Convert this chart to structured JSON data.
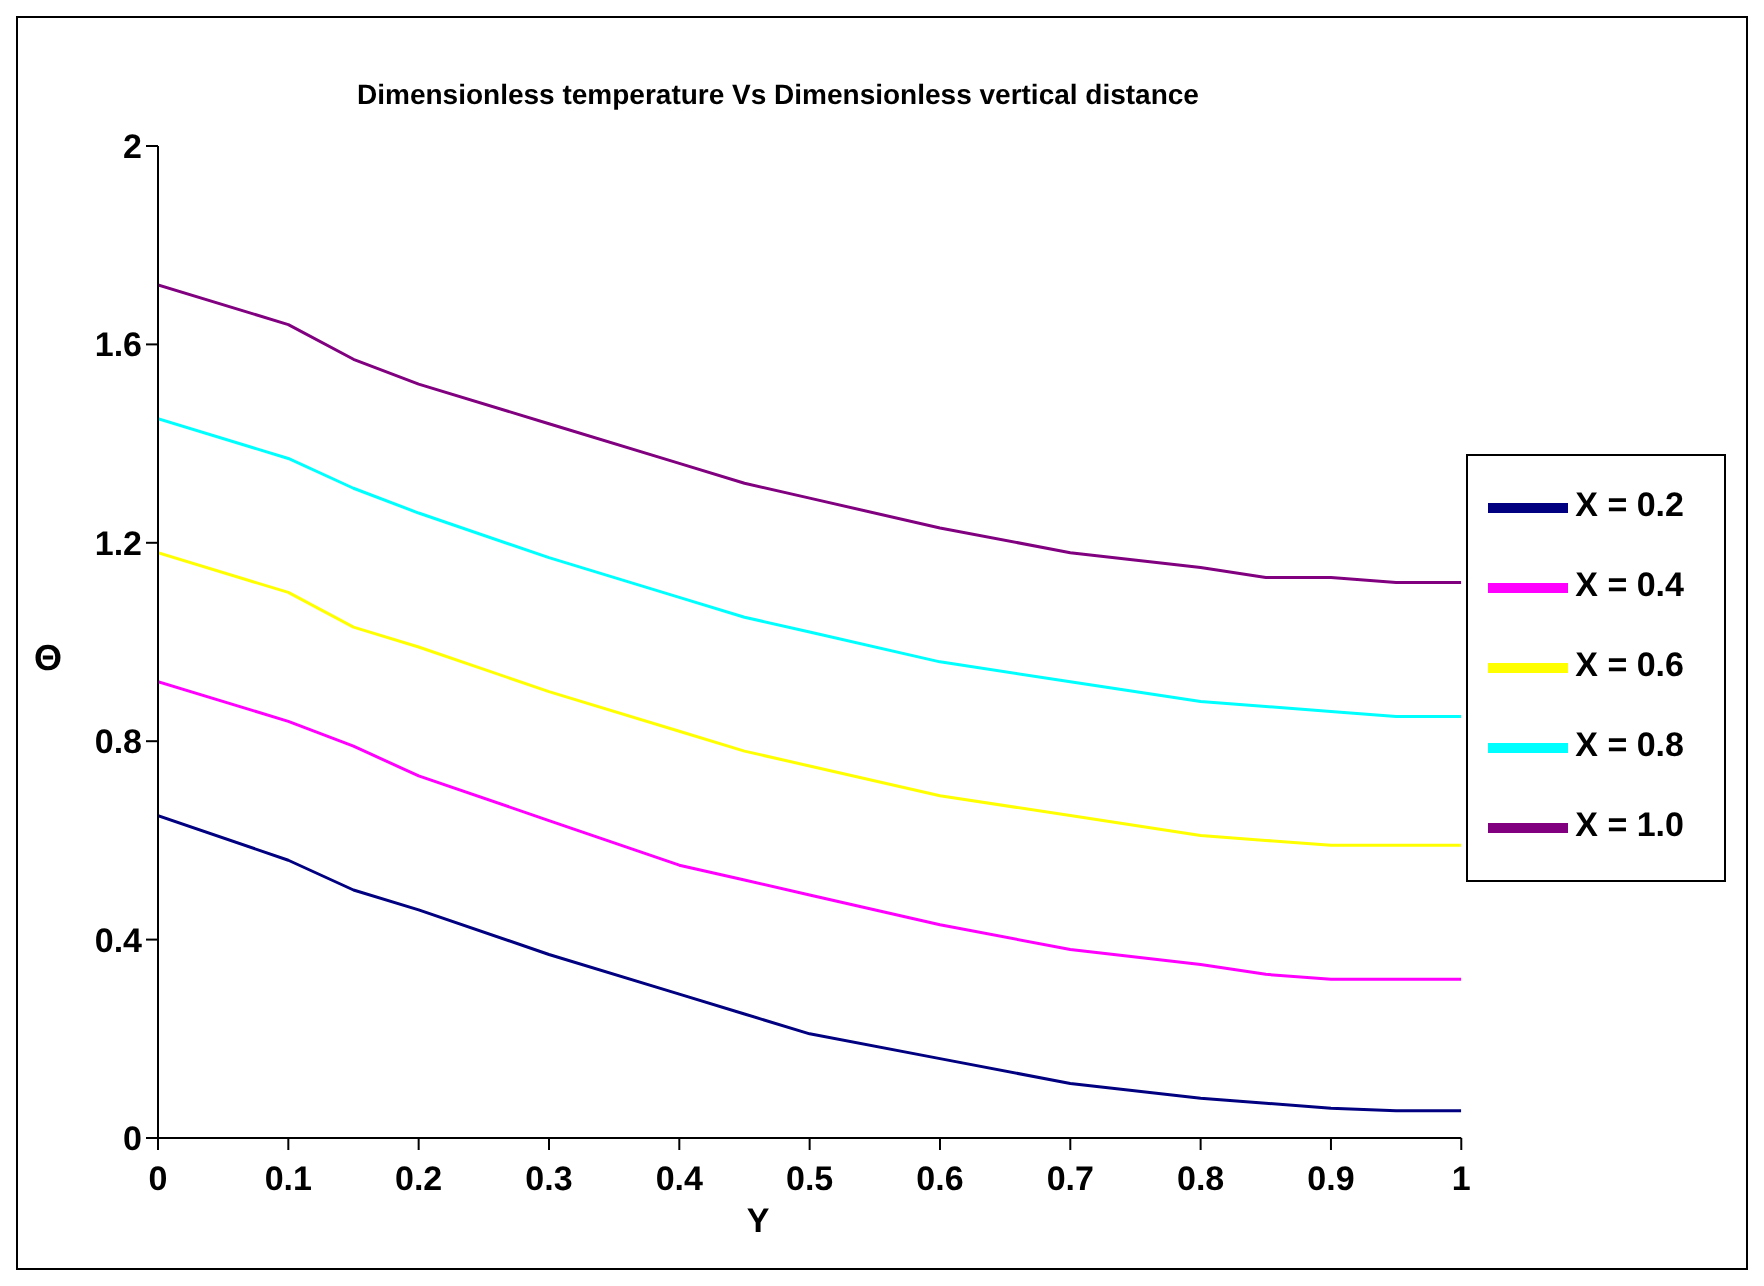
{
  "chart_data": {
    "type": "line",
    "title": "Dimensionless temperature Vs Dimensionless vertical distance",
    "xlabel": "Y",
    "ylabel": "Θ",
    "x": [
      0,
      0.1,
      0.15,
      0.2,
      0.3,
      0.4,
      0.45,
      0.5,
      0.6,
      0.7,
      0.8,
      0.85,
      0.9,
      0.95,
      1
    ],
    "series": [
      {
        "name": "X = 0.2",
        "color": "#000080",
        "values": [
          0.65,
          0.56,
          0.5,
          0.46,
          0.37,
          0.29,
          0.25,
          0.21,
          0.16,
          0.11,
          0.08,
          0.07,
          0.06,
          0.055,
          0.055
        ]
      },
      {
        "name": "X = 0.4",
        "color": "#ff00ff",
        "values": [
          0.92,
          0.84,
          0.79,
          0.73,
          0.64,
          0.55,
          0.52,
          0.49,
          0.43,
          0.38,
          0.35,
          0.33,
          0.32,
          0.32,
          0.32
        ]
      },
      {
        "name": "X = 0.6",
        "color": "#ffff00",
        "values": [
          1.18,
          1.1,
          1.03,
          0.99,
          0.9,
          0.82,
          0.78,
          0.75,
          0.69,
          0.65,
          0.61,
          0.6,
          0.59,
          0.59,
          0.59
        ]
      },
      {
        "name": "X = 0.8",
        "color": "#00ffff",
        "values": [
          1.45,
          1.37,
          1.31,
          1.26,
          1.17,
          1.09,
          1.05,
          1.02,
          0.96,
          0.92,
          0.88,
          0.87,
          0.86,
          0.85,
          0.85
        ]
      },
      {
        "name": "X = 1.0",
        "color": "#800080",
        "values": [
          1.72,
          1.64,
          1.57,
          1.52,
          1.44,
          1.36,
          1.32,
          1.29,
          1.23,
          1.18,
          1.15,
          1.13,
          1.13,
          1.12,
          1.12
        ]
      }
    ],
    "xlim": [
      0,
      1
    ],
    "xticks": [
      0,
      0.1,
      0.2,
      0.3,
      0.4,
      0.5,
      0.6,
      0.7,
      0.8,
      0.9,
      1
    ],
    "ylim": [
      0,
      2
    ],
    "yticks": [
      0,
      0.4,
      0.8,
      1.2,
      1.6,
      2
    ],
    "grid": false,
    "legend": "right",
    "marker": "none",
    "line_style": "solid"
  }
}
